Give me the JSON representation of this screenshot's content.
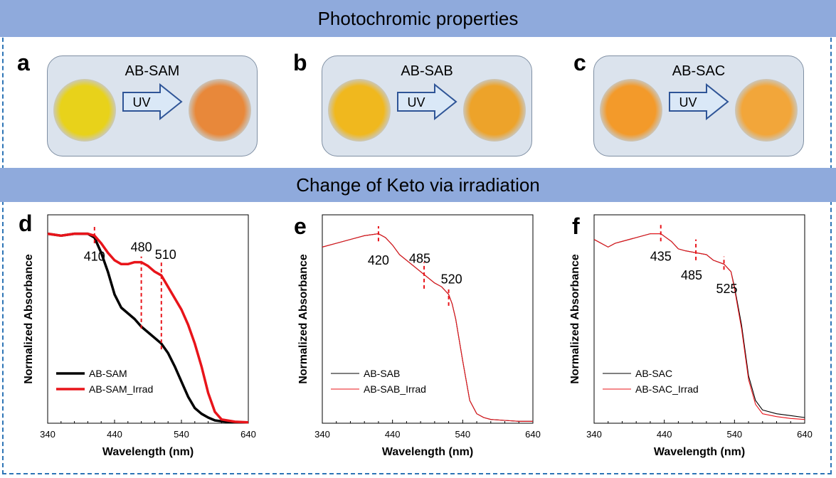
{
  "banners": {
    "top": "Photochromic properties",
    "middle": "Change of Keto via irradiation"
  },
  "panels_top": [
    {
      "letter": "a",
      "title": "AB-SAM",
      "arrow_label": "UV",
      "before_color": "#e8d21a",
      "after_color": "#e8883a"
    },
    {
      "letter": "b",
      "title": "AB-SAB",
      "arrow_label": "UV",
      "before_color": "#f0b81e",
      "after_color": "#eda32a"
    },
    {
      "letter": "c",
      "title": "AB-SAC",
      "arrow_label": "UV",
      "before_color": "#f39a2a",
      "after_color": "#f2a63a"
    }
  ],
  "colors": {
    "accent_banner": "#8faadc",
    "frame": "#2e75b6",
    "series_black": "#000000",
    "series_red": "#e8141a"
  },
  "chart_data": [
    {
      "type": "line",
      "panel": "d",
      "xlabel": "Wavelength (nm)",
      "ylabel": "Normalized Absorbance",
      "xlim": [
        340,
        640
      ],
      "ylim": [
        0,
        1.1
      ],
      "xticks": [
        340,
        440,
        540,
        640
      ],
      "line_width": "thick",
      "series": [
        {
          "name": "AB-SAM",
          "color": "#000000",
          "x": [
            340,
            360,
            380,
            400,
            410,
            420,
            430,
            440,
            450,
            460,
            470,
            480,
            490,
            500,
            510,
            520,
            530,
            540,
            550,
            560,
            570,
            580,
            590,
            600,
            620,
            640
          ],
          "y": [
            1.0,
            0.99,
            1.0,
            1.0,
            0.98,
            0.9,
            0.8,
            0.68,
            0.61,
            0.58,
            0.55,
            0.51,
            0.48,
            0.45,
            0.42,
            0.37,
            0.3,
            0.22,
            0.14,
            0.08,
            0.05,
            0.03,
            0.015,
            0.01,
            0.005,
            0.005
          ]
        },
        {
          "name": "AB-SAM_Irrad",
          "color": "#e8141a",
          "x": [
            340,
            360,
            380,
            400,
            410,
            420,
            430,
            440,
            450,
            460,
            470,
            480,
            490,
            500,
            510,
            520,
            530,
            540,
            550,
            560,
            570,
            580,
            590,
            600,
            620,
            640
          ],
          "y": [
            1.0,
            0.99,
            1.0,
            1.0,
            0.99,
            0.95,
            0.9,
            0.86,
            0.84,
            0.84,
            0.85,
            0.85,
            0.83,
            0.8,
            0.78,
            0.72,
            0.66,
            0.6,
            0.52,
            0.42,
            0.3,
            0.16,
            0.06,
            0.02,
            0.008,
            0.005
          ]
        }
      ],
      "markers": [
        {
          "x": 410,
          "label": "410",
          "y_from": 0.95,
          "y_to": 1.04,
          "label_y": 0.88,
          "label_dx": 0
        },
        {
          "x": 480,
          "label": "480",
          "y_from": 0.5,
          "y_to": 0.88,
          "label_y": 0.93,
          "label_dx": 0
        },
        {
          "x": 510,
          "label": "510",
          "y_from": 0.39,
          "y_to": 0.86,
          "label_y": 0.89,
          "label_dx": 6
        }
      ],
      "legend": {
        "position": "bottom-left"
      }
    },
    {
      "type": "line",
      "panel": "e",
      "xlabel": "Wavelength (nm)",
      "ylabel": "Normalized Absorbance",
      "xlim": [
        340,
        640
      ],
      "ylim": [
        0,
        1.1
      ],
      "xticks": [
        340,
        440,
        540,
        640
      ],
      "line_width": "thin",
      "series": [
        {
          "name": "AB-SAB",
          "color": "#000000",
          "x": [
            340,
            360,
            380,
            400,
            420,
            430,
            440,
            450,
            460,
            470,
            480,
            490,
            500,
            510,
            520,
            525,
            530,
            540,
            550,
            560,
            570,
            580,
            600,
            620,
            640
          ],
          "y": [
            0.93,
            0.95,
            0.97,
            0.99,
            1.0,
            0.98,
            0.94,
            0.89,
            0.86,
            0.83,
            0.8,
            0.77,
            0.74,
            0.72,
            0.68,
            0.63,
            0.55,
            0.33,
            0.12,
            0.05,
            0.03,
            0.02,
            0.015,
            0.01,
            0.01
          ]
        },
        {
          "name": "AB-SAB_Irrad",
          "color": "#e8141a",
          "x": [
            340,
            360,
            380,
            400,
            420,
            430,
            440,
            450,
            460,
            470,
            480,
            490,
            500,
            510,
            520,
            525,
            530,
            540,
            550,
            560,
            570,
            580,
            600,
            620,
            640
          ],
          "y": [
            0.93,
            0.95,
            0.97,
            0.99,
            1.0,
            0.98,
            0.94,
            0.89,
            0.86,
            0.83,
            0.8,
            0.77,
            0.74,
            0.72,
            0.68,
            0.63,
            0.55,
            0.33,
            0.12,
            0.05,
            0.03,
            0.02,
            0.015,
            0.01,
            0.01
          ]
        }
      ],
      "markers": [
        {
          "x": 420,
          "label": "420",
          "y_from": 0.96,
          "y_to": 1.04,
          "label_y": 0.86,
          "label_dx": 0
        },
        {
          "x": 485,
          "label": "485",
          "y_from": 0.71,
          "y_to": 0.85,
          "label_y": 0.87,
          "label_dx": -6
        },
        {
          "x": 520,
          "label": "520",
          "y_from": 0.62,
          "y_to": 0.72,
          "label_y": 0.76,
          "label_dx": 4
        }
      ],
      "legend": {
        "position": "bottom-left"
      }
    },
    {
      "type": "line",
      "panel": "f",
      "xlabel": "Wavelength (nm)",
      "ylabel": "Normalized Absorbance",
      "xlim": [
        340,
        640
      ],
      "ylim": [
        0,
        1.1
      ],
      "xticks": [
        340,
        440,
        540,
        640
      ],
      "line_width": "thin",
      "series": [
        {
          "name": "AB-SAC",
          "color": "#000000",
          "x": [
            340,
            350,
            360,
            370,
            380,
            400,
            420,
            435,
            450,
            460,
            470,
            485,
            500,
            510,
            525,
            535,
            540,
            550,
            560,
            570,
            580,
            600,
            620,
            640
          ],
          "y": [
            0.97,
            0.95,
            0.93,
            0.95,
            0.96,
            0.98,
            1.0,
            1.0,
            0.96,
            0.92,
            0.91,
            0.9,
            0.89,
            0.86,
            0.84,
            0.8,
            0.72,
            0.52,
            0.25,
            0.12,
            0.07,
            0.05,
            0.04,
            0.03
          ]
        },
        {
          "name": "AB-SAC_Irrad",
          "color": "#e8141a",
          "x": [
            340,
            350,
            360,
            370,
            380,
            400,
            420,
            435,
            450,
            460,
            470,
            485,
            500,
            510,
            525,
            535,
            540,
            550,
            560,
            570,
            580,
            600,
            620,
            640
          ],
          "y": [
            0.97,
            0.95,
            0.93,
            0.95,
            0.96,
            0.98,
            1.0,
            1.0,
            0.96,
            0.92,
            0.91,
            0.9,
            0.89,
            0.86,
            0.84,
            0.8,
            0.71,
            0.5,
            0.23,
            0.1,
            0.05,
            0.035,
            0.025,
            0.02
          ]
        }
      ],
      "markers": [
        {
          "x": 435,
          "label": "435",
          "y_from": 0.96,
          "y_to": 1.05,
          "label_y": 0.88,
          "label_dx": 0
        },
        {
          "x": 485,
          "label": "485",
          "y_from": 0.86,
          "y_to": 0.97,
          "label_y": 0.78,
          "label_dx": -6
        },
        {
          "x": 525,
          "label": "525",
          "y_from": 0.81,
          "y_to": 0.88,
          "label_y": 0.71,
          "label_dx": 4
        }
      ],
      "legend": {
        "position": "bottom-left"
      }
    }
  ]
}
